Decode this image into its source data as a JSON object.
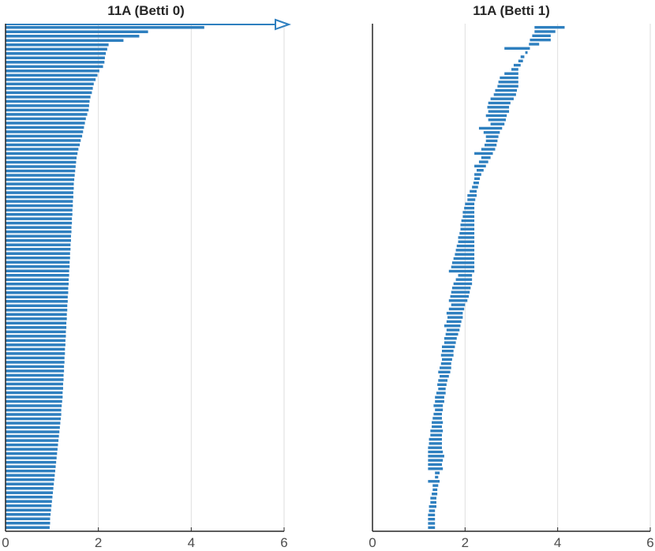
{
  "chart_data": [
    {
      "type": "barcode",
      "title": "11A (Betti 0)",
      "xlim": [
        0,
        6
      ],
      "xticks": [
        "0",
        "2",
        "4",
        "6"
      ],
      "grid": "vertical",
      "color": "#2e7fbf",
      "infinite_bar": {
        "birth": 0,
        "death": "inf"
      },
      "bars": [
        [
          0,
          4.28
        ],
        [
          0,
          3.07
        ],
        [
          0,
          2.88
        ],
        [
          0,
          2.54
        ],
        [
          0,
          2.22
        ],
        [
          0,
          2.19
        ],
        [
          0,
          2.16
        ],
        [
          0,
          2.14
        ],
        [
          0,
          2.13
        ],
        [
          0,
          2.1
        ],
        [
          0,
          2.02
        ],
        [
          0,
          1.98
        ],
        [
          0,
          1.94
        ],
        [
          0,
          1.9
        ],
        [
          0,
          1.88
        ],
        [
          0,
          1.86
        ],
        [
          0,
          1.83
        ],
        [
          0,
          1.81
        ],
        [
          0,
          1.8
        ],
        [
          0,
          1.79
        ],
        [
          0,
          1.76
        ],
        [
          0,
          1.73
        ],
        [
          0,
          1.71
        ],
        [
          0,
          1.69
        ],
        [
          0,
          1.67
        ],
        [
          0,
          1.65
        ],
        [
          0,
          1.62
        ],
        [
          0,
          1.6
        ],
        [
          0,
          1.57
        ],
        [
          0,
          1.55
        ],
        [
          0,
          1.53
        ],
        [
          0,
          1.52
        ],
        [
          0,
          1.51
        ],
        [
          0,
          1.5
        ],
        [
          0,
          1.49
        ],
        [
          0,
          1.48
        ],
        [
          0,
          1.47
        ],
        [
          0,
          1.47
        ],
        [
          0,
          1.46
        ],
        [
          0,
          1.46
        ],
        [
          0,
          1.45
        ],
        [
          0,
          1.45
        ],
        [
          0,
          1.44
        ],
        [
          0,
          1.44
        ],
        [
          0,
          1.43
        ],
        [
          0,
          1.43
        ],
        [
          0,
          1.42
        ],
        [
          0,
          1.42
        ],
        [
          0,
          1.41
        ],
        [
          0,
          1.41
        ],
        [
          0,
          1.4
        ],
        [
          0,
          1.4
        ],
        [
          0,
          1.39
        ],
        [
          0,
          1.39
        ],
        [
          0,
          1.38
        ],
        [
          0,
          1.38
        ],
        [
          0,
          1.37
        ],
        [
          0,
          1.37
        ],
        [
          0,
          1.36
        ],
        [
          0,
          1.36
        ],
        [
          0,
          1.35
        ],
        [
          0,
          1.35
        ],
        [
          0,
          1.34
        ],
        [
          0,
          1.34
        ],
        [
          0,
          1.33
        ],
        [
          0,
          1.33
        ],
        [
          0,
          1.32
        ],
        [
          0,
          1.32
        ],
        [
          0,
          1.31
        ],
        [
          0,
          1.31
        ],
        [
          0,
          1.3
        ],
        [
          0,
          1.3
        ],
        [
          0,
          1.29
        ],
        [
          0,
          1.29
        ],
        [
          0,
          1.28
        ],
        [
          0,
          1.28
        ],
        [
          0,
          1.27
        ],
        [
          0,
          1.27
        ],
        [
          0,
          1.26
        ],
        [
          0,
          1.26
        ],
        [
          0,
          1.25
        ],
        [
          0,
          1.25
        ],
        [
          0,
          1.24
        ],
        [
          0,
          1.24
        ],
        [
          0,
          1.23
        ],
        [
          0,
          1.23
        ],
        [
          0,
          1.22
        ],
        [
          0,
          1.21
        ],
        [
          0,
          1.2
        ],
        [
          0,
          1.2
        ],
        [
          0,
          1.19
        ],
        [
          0,
          1.18
        ],
        [
          0,
          1.17
        ],
        [
          0,
          1.16
        ],
        [
          0,
          1.15
        ],
        [
          0,
          1.14
        ],
        [
          0,
          1.13
        ],
        [
          0,
          1.12
        ],
        [
          0,
          1.11
        ],
        [
          0,
          1.1
        ],
        [
          0,
          1.09
        ],
        [
          0,
          1.08
        ],
        [
          0,
          1.07
        ],
        [
          0,
          1.06
        ],
        [
          0,
          1.05
        ],
        [
          0,
          1.04
        ],
        [
          0,
          1.03
        ],
        [
          0,
          1.02
        ],
        [
          0,
          1.01
        ],
        [
          0,
          1.0
        ],
        [
          0,
          0.99
        ],
        [
          0,
          0.98
        ],
        [
          0,
          0.97
        ],
        [
          0,
          0.96
        ],
        [
          0,
          0.96
        ],
        [
          0,
          0.95
        ]
      ]
    },
    {
      "type": "barcode",
      "title": "11A (Betti 1)",
      "xlim": [
        0,
        6
      ],
      "xticks": [
        "0",
        "2",
        "4",
        "6"
      ],
      "grid": "vertical",
      "color": "#2e7fbf",
      "bars": [
        [
          3.5,
          4.15
        ],
        [
          3.5,
          3.95
        ],
        [
          3.45,
          3.85
        ],
        [
          3.4,
          3.85
        ],
        [
          3.38,
          3.6
        ],
        [
          2.85,
          3.4
        ],
        [
          3.3,
          3.35
        ],
        [
          3.2,
          3.28
        ],
        [
          3.15,
          3.25
        ],
        [
          3.05,
          3.2
        ],
        [
          3.0,
          3.15
        ],
        [
          2.85,
          3.15
        ],
        [
          2.75,
          3.15
        ],
        [
          2.72,
          3.15
        ],
        [
          2.7,
          3.15
        ],
        [
          2.65,
          3.12
        ],
        [
          2.62,
          3.1
        ],
        [
          2.55,
          3.05
        ],
        [
          2.5,
          2.98
        ],
        [
          2.48,
          2.95
        ],
        [
          2.5,
          2.95
        ],
        [
          2.45,
          2.9
        ],
        [
          2.5,
          2.88
        ],
        [
          2.55,
          2.85
        ],
        [
          2.3,
          2.8
        ],
        [
          2.4,
          2.75
        ],
        [
          2.45,
          2.72
        ],
        [
          2.45,
          2.7
        ],
        [
          2.42,
          2.68
        ],
        [
          2.35,
          2.65
        ],
        [
          2.2,
          2.6
        ],
        [
          2.35,
          2.55
        ],
        [
          2.3,
          2.5
        ],
        [
          2.2,
          2.45
        ],
        [
          2.25,
          2.4
        ],
        [
          2.2,
          2.35
        ],
        [
          2.2,
          2.32
        ],
        [
          2.18,
          2.3
        ],
        [
          2.15,
          2.28
        ],
        [
          2.1,
          2.25
        ],
        [
          2.05,
          2.25
        ],
        [
          2.05,
          2.22
        ],
        [
          2.0,
          2.2
        ],
        [
          1.98,
          2.2
        ],
        [
          1.95,
          2.2
        ],
        [
          1.95,
          2.2
        ],
        [
          1.92,
          2.2
        ],
        [
          1.9,
          2.2
        ],
        [
          1.9,
          2.2
        ],
        [
          1.88,
          2.2
        ],
        [
          1.85,
          2.2
        ],
        [
          1.85,
          2.2
        ],
        [
          1.82,
          2.2
        ],
        [
          1.8,
          2.2
        ],
        [
          1.78,
          2.2
        ],
        [
          1.75,
          2.2
        ],
        [
          1.72,
          2.2
        ],
        [
          1.7,
          2.2
        ],
        [
          1.65,
          2.2
        ],
        [
          1.85,
          2.15
        ],
        [
          1.8,
          2.15
        ],
        [
          1.75,
          2.15
        ],
        [
          1.72,
          2.12
        ],
        [
          1.7,
          2.1
        ],
        [
          1.68,
          2.08
        ],
        [
          1.65,
          2.05
        ],
        [
          1.7,
          2.0
        ],
        [
          1.65,
          1.98
        ],
        [
          1.6,
          1.95
        ],
        [
          1.62,
          1.95
        ],
        [
          1.6,
          1.92
        ],
        [
          1.55,
          1.9
        ],
        [
          1.6,
          1.88
        ],
        [
          1.58,
          1.85
        ],
        [
          1.55,
          1.82
        ],
        [
          1.55,
          1.8
        ],
        [
          1.5,
          1.78
        ],
        [
          1.5,
          1.75
        ],
        [
          1.48,
          1.75
        ],
        [
          1.5,
          1.72
        ],
        [
          1.48,
          1.7
        ],
        [
          1.45,
          1.7
        ],
        [
          1.42,
          1.68
        ],
        [
          1.45,
          1.65
        ],
        [
          1.42,
          1.62
        ],
        [
          1.4,
          1.6
        ],
        [
          1.42,
          1.58
        ],
        [
          1.38,
          1.58
        ],
        [
          1.35,
          1.55
        ],
        [
          1.35,
          1.55
        ],
        [
          1.32,
          1.52
        ],
        [
          1.35,
          1.52
        ],
        [
          1.32,
          1.5
        ],
        [
          1.3,
          1.5
        ],
        [
          1.28,
          1.52
        ],
        [
          1.28,
          1.5
        ],
        [
          1.25,
          1.52
        ],
        [
          1.25,
          1.5
        ],
        [
          1.22,
          1.5
        ],
        [
          1.22,
          1.5
        ],
        [
          1.2,
          1.5
        ],
        [
          1.2,
          1.52
        ],
        [
          1.2,
          1.55
        ],
        [
          1.2,
          1.52
        ],
        [
          1.2,
          1.5
        ],
        [
          1.2,
          1.52
        ],
        [
          1.35,
          1.45
        ],
        [
          1.35,
          1.42
        ],
        [
          1.2,
          1.45
        ],
        [
          1.3,
          1.42
        ],
        [
          1.3,
          1.4
        ],
        [
          1.28,
          1.4
        ],
        [
          1.25,
          1.38
        ],
        [
          1.25,
          1.38
        ],
        [
          1.22,
          1.38
        ],
        [
          1.22,
          1.35
        ],
        [
          1.2,
          1.35
        ],
        [
          1.2,
          1.35
        ],
        [
          1.2,
          1.35
        ],
        [
          1.2,
          1.35
        ]
      ]
    }
  ]
}
